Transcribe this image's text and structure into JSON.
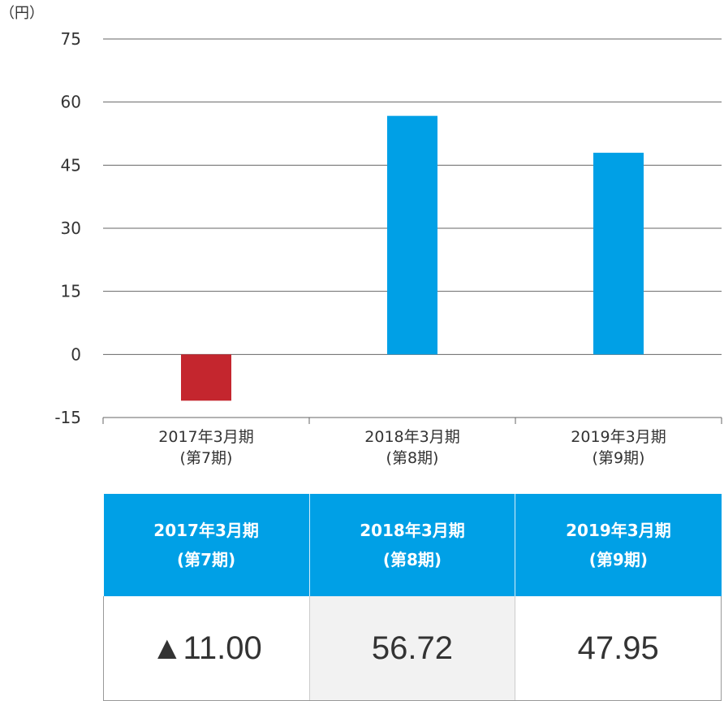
{
  "chart_data": {
    "type": "bar",
    "unit_label": "（円）",
    "categories": [
      [
        "2017年3月期",
        "(第7期)"
      ],
      [
        "2018年3月期",
        "(第8期)"
      ],
      [
        "2019年3月期",
        "(第9期)"
      ]
    ],
    "values": [
      -11.0,
      56.72,
      47.95
    ],
    "ylim": [
      -15,
      75
    ],
    "yticks": [
      75,
      60,
      45,
      30,
      15,
      0,
      -15
    ],
    "grid": true,
    "colors": {
      "positive": "#00a0e6",
      "negative": "#c4262e",
      "grid": "#666666"
    }
  },
  "table": {
    "headers": [
      [
        "2017年3月期",
        "(第7期)"
      ],
      [
        "2018年3月期",
        "(第8期)"
      ],
      [
        "2019年3月期",
        "(第9期)"
      ]
    ],
    "values": [
      "▲11.00",
      "56.72",
      "47.95"
    ],
    "header_color": "#00a0e6",
    "shaded_color": "#f2f2f2"
  }
}
